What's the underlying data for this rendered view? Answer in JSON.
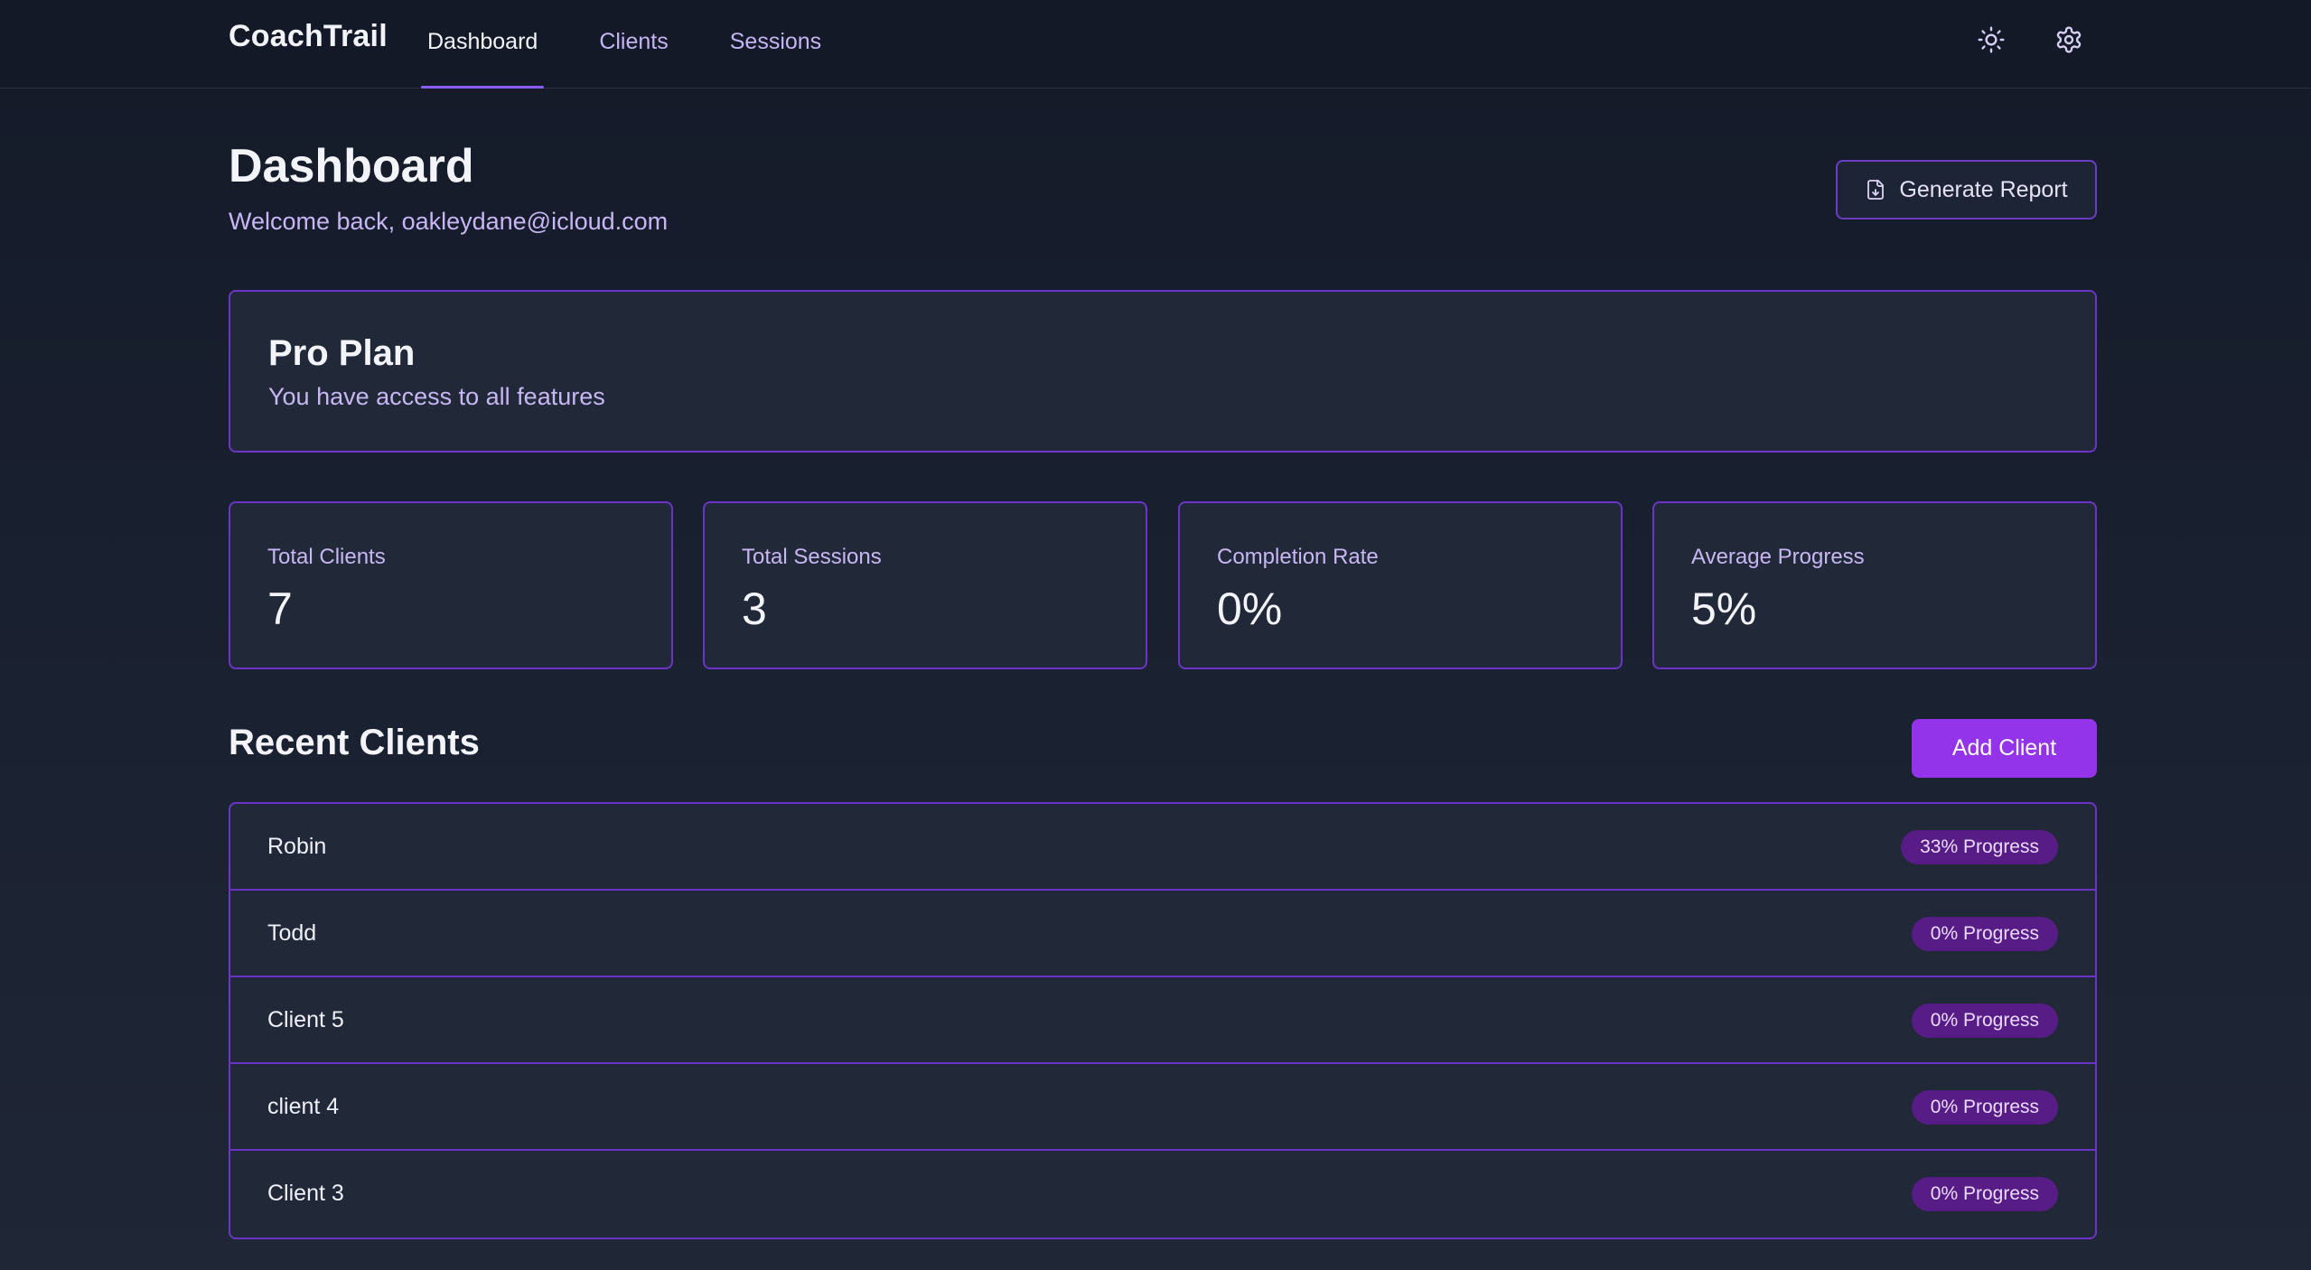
{
  "app": {
    "brand": "CoachTrail"
  },
  "nav": {
    "items": [
      {
        "label": "Dashboard",
        "active": true
      },
      {
        "label": "Clients",
        "active": false
      },
      {
        "label": "Sessions",
        "active": false
      }
    ],
    "icons": [
      "sun-icon",
      "gear-icon"
    ]
  },
  "header": {
    "title": "Dashboard",
    "welcome": "Welcome back, oakleydane@icloud.com",
    "report_button": "Generate Report"
  },
  "plan": {
    "title": "Pro Plan",
    "description": "You have access to all features"
  },
  "stats": [
    {
      "label": "Total Clients",
      "value": "7"
    },
    {
      "label": "Total Sessions",
      "value": "3"
    },
    {
      "label": "Completion Rate",
      "value": "0%"
    },
    {
      "label": "Average Progress",
      "value": "5%"
    }
  ],
  "recent_clients": {
    "title": "Recent Clients",
    "add_button": "Add Client",
    "rows": [
      {
        "name": "Robin",
        "progress": "33% Progress"
      },
      {
        "name": "Todd",
        "progress": "0% Progress"
      },
      {
        "name": "Client 5",
        "progress": "0% Progress"
      },
      {
        "name": "client 4",
        "progress": "0% Progress"
      },
      {
        "name": "Client 3",
        "progress": "0% Progress"
      }
    ]
  },
  "colors": {
    "accent": "#9333ea",
    "border": "#6b34c6",
    "badge": "#581c87",
    "muted_text": "#c7b6f3",
    "card_bg": "#212939"
  }
}
